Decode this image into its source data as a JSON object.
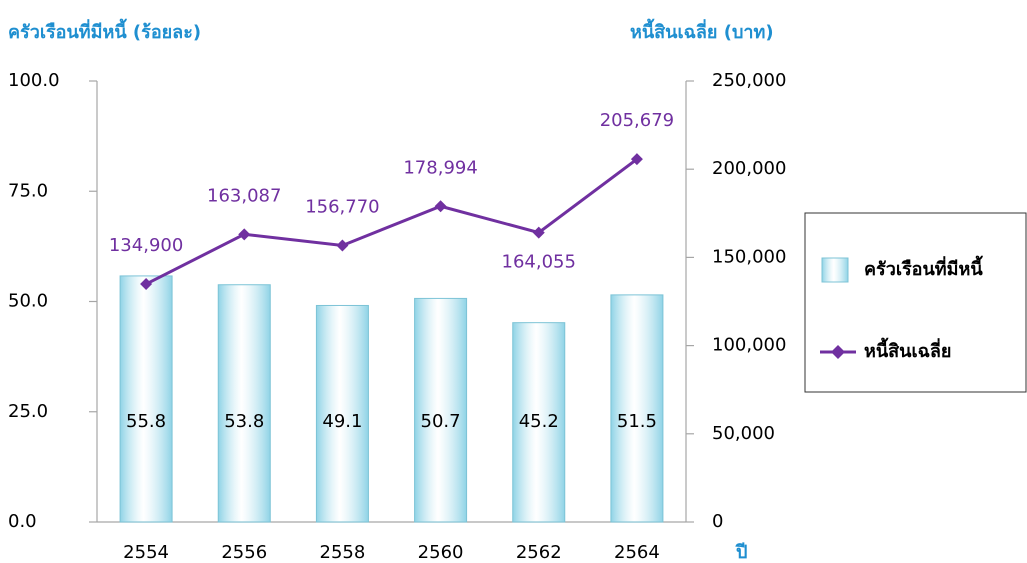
{
  "chart_data": {
    "type": "bar_line",
    "y_title": "ครัวเรือนที่มีหนี้ (ร้อยละ)",
    "y2_title": "หนี้สินเฉลี่ย (บาท)",
    "x_title": "ปี",
    "categories": [
      "2554",
      "2556",
      "2558",
      "2560",
      "2562",
      "2564"
    ],
    "series": [
      {
        "name": "ครัวเรือนที่มีหนี้",
        "type": "bar",
        "color": "#8fd3e6",
        "axis": "y",
        "values": [
          55.8,
          53.8,
          49.1,
          50.7,
          45.2,
          51.5
        ]
      },
      {
        "name": "หนี้สินเฉลี่ย",
        "type": "line",
        "color": "#7030a0",
        "axis": "y2",
        "values": [
          134900,
          163087,
          156770,
          178994,
          164055,
          205679
        ],
        "value_labels": [
          "134,900",
          "163,087",
          "156,770",
          "178,994",
          "164,055",
          "205,679"
        ]
      }
    ],
    "ylim": [
      0,
      100
    ],
    "yticks": [
      {
        "value": 0,
        "label": "0.0"
      },
      {
        "value": 25,
        "label": "25.0"
      },
      {
        "value": 50,
        "label": "50.0"
      },
      {
        "value": 75,
        "label": "75.0"
      },
      {
        "value": 100,
        "label": "100.0"
      }
    ],
    "y2lim": [
      0,
      250000
    ],
    "y2ticks": [
      0,
      {
        "value": 50000,
        "label": "50,000"
      },
      {
        "value": 100000,
        "label": "100,000"
      },
      {
        "value": 150000,
        "label": "150,000"
      },
      {
        "value": 200000,
        "label": "200,000"
      },
      {
        "value": 250000,
        "label": "250,000"
      }
    ],
    "grid": false,
    "legend": "right"
  }
}
